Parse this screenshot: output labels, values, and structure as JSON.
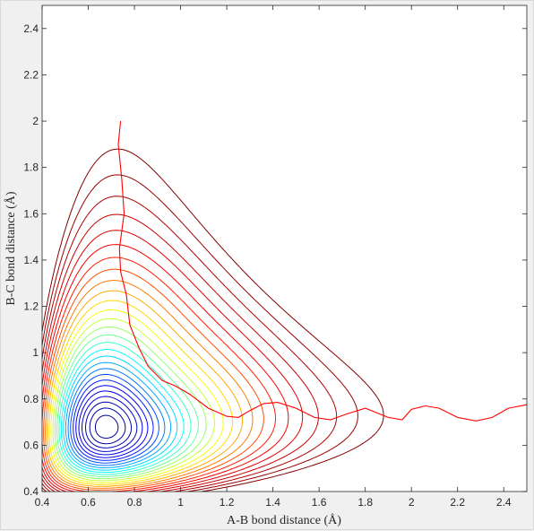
{
  "chart_data": {
    "type": "contour",
    "title": "",
    "xlabel": "A-B bond distance (Å)",
    "ylabel": "B-C bond distance (Å)",
    "xlim": [
      0.4,
      2.5
    ],
    "ylim": [
      0.4,
      2.5
    ],
    "xticks": [
      "0.4",
      "0.6",
      "0.8",
      "1",
      "1.2",
      "1.4",
      "1.6",
      "1.8",
      "2",
      "2.2",
      "2.4"
    ],
    "yticks": [
      "0.4",
      "0.6",
      "0.8",
      "1",
      "1.2",
      "1.4",
      "1.6",
      "1.8",
      "2",
      "2.2",
      "2.4"
    ],
    "grid": false,
    "colormap": "jet",
    "colormap_stops": [
      "#00008f",
      "#0000ff",
      "#00ffff",
      "#ffff00",
      "#ff0000",
      "#800000"
    ],
    "contour_levels": 28,
    "trajectory": {
      "color": "#ff0000",
      "points": [
        [
          0.74,
          2.0
        ],
        [
          0.73,
          1.9
        ],
        [
          0.745,
          1.75
        ],
        [
          0.755,
          1.6
        ],
        [
          0.735,
          1.45
        ],
        [
          0.74,
          1.35
        ],
        [
          0.765,
          1.25
        ],
        [
          0.78,
          1.12
        ],
        [
          0.82,
          1.02
        ],
        [
          0.86,
          0.94
        ],
        [
          0.92,
          0.88
        ],
        [
          0.98,
          0.855
        ],
        [
          1.04,
          0.82
        ],
        [
          1.12,
          0.76
        ],
        [
          1.2,
          0.725
        ],
        [
          1.25,
          0.72
        ],
        [
          1.3,
          0.75
        ],
        [
          1.36,
          0.78
        ],
        [
          1.42,
          0.785
        ],
        [
          1.5,
          0.76
        ],
        [
          1.58,
          0.72
        ],
        [
          1.65,
          0.71
        ],
        [
          1.72,
          0.735
        ],
        [
          1.8,
          0.76
        ],
        [
          1.9,
          0.72
        ],
        [
          1.96,
          0.71
        ],
        [
          2.0,
          0.755
        ],
        [
          2.06,
          0.77
        ],
        [
          2.12,
          0.76
        ],
        [
          2.2,
          0.72
        ],
        [
          2.28,
          0.705
        ],
        [
          2.35,
          0.72
        ],
        [
          2.42,
          0.76
        ],
        [
          2.5,
          0.775
        ]
      ]
    }
  }
}
